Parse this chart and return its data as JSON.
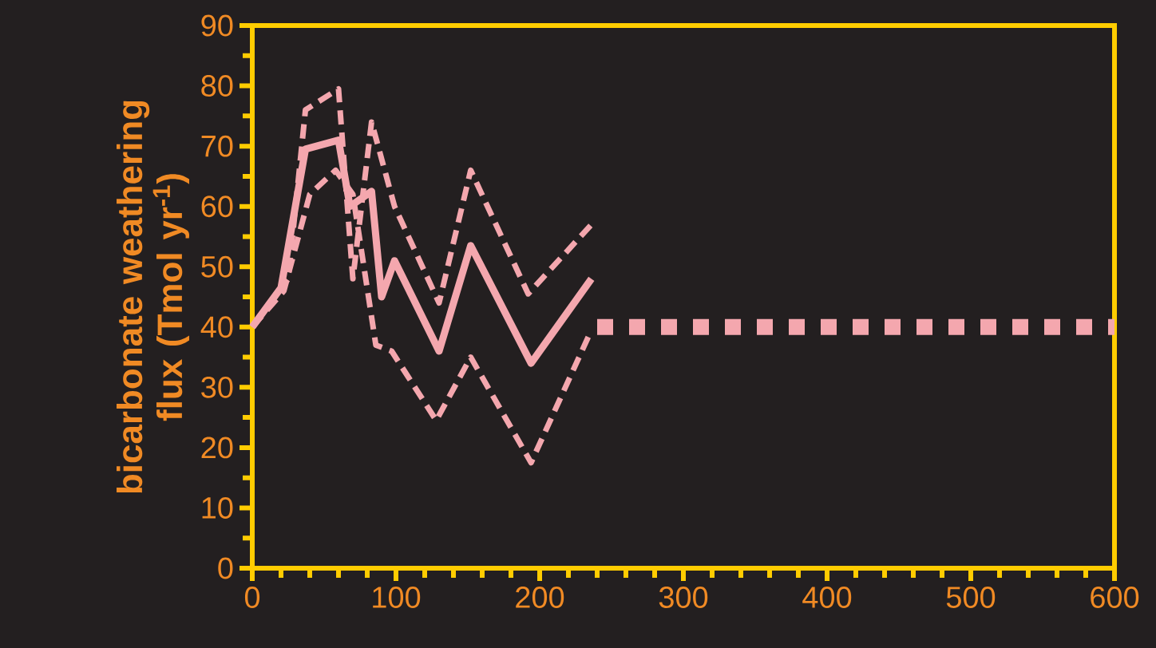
{
  "chart_data": {
    "type": "line",
    "ylabel": "bicarbonate weathering flux (Tmol yr$^{-1}$)",
    "xlim": [
      0,
      600
    ],
    "xticks": [
      0,
      100,
      200,
      300,
      400,
      500,
      600
    ],
    "ylim": [
      0,
      90
    ],
    "yticks": [
      0,
      10,
      20,
      30,
      40,
      50,
      60,
      70,
      80,
      90
    ],
    "marker": "none",
    "series": [
      {
        "color": "#f4a7ae",
        "line_style": "solid",
        "x": [
          0,
          20,
          37,
          60,
          68,
          83,
          90,
          99,
          130,
          152,
          194,
          236
        ],
        "values": [
          40,
          46.5,
          69.5,
          71,
          60,
          62.5,
          45,
          51,
          36,
          53.5,
          34,
          48
        ]
      },
      {
        "color": "#f4a7ae",
        "line_style": "dashed",
        "x": [
          0,
          25,
          37,
          60,
          70,
          83,
          99,
          130,
          152,
          192,
          236
        ],
        "values": [
          40,
          48,
          76,
          79.5,
          48,
          74,
          60,
          44,
          66,
          45.5,
          57
        ]
      },
      {
        "color": "#f4a7ae",
        "line_style": "dashed",
        "x": [
          0,
          22,
          40,
          58,
          70,
          86,
          97,
          128,
          152,
          194,
          236
        ],
        "values": [
          40,
          46,
          62,
          66,
          62,
          37,
          36,
          24.5,
          35,
          17.5,
          39.5
        ]
      },
      {
        "color": "#f4a7ae",
        "line_style": "dotted",
        "x": [
          240,
          600
        ],
        "values": [
          40,
          40
        ]
      }
    ]
  }
}
